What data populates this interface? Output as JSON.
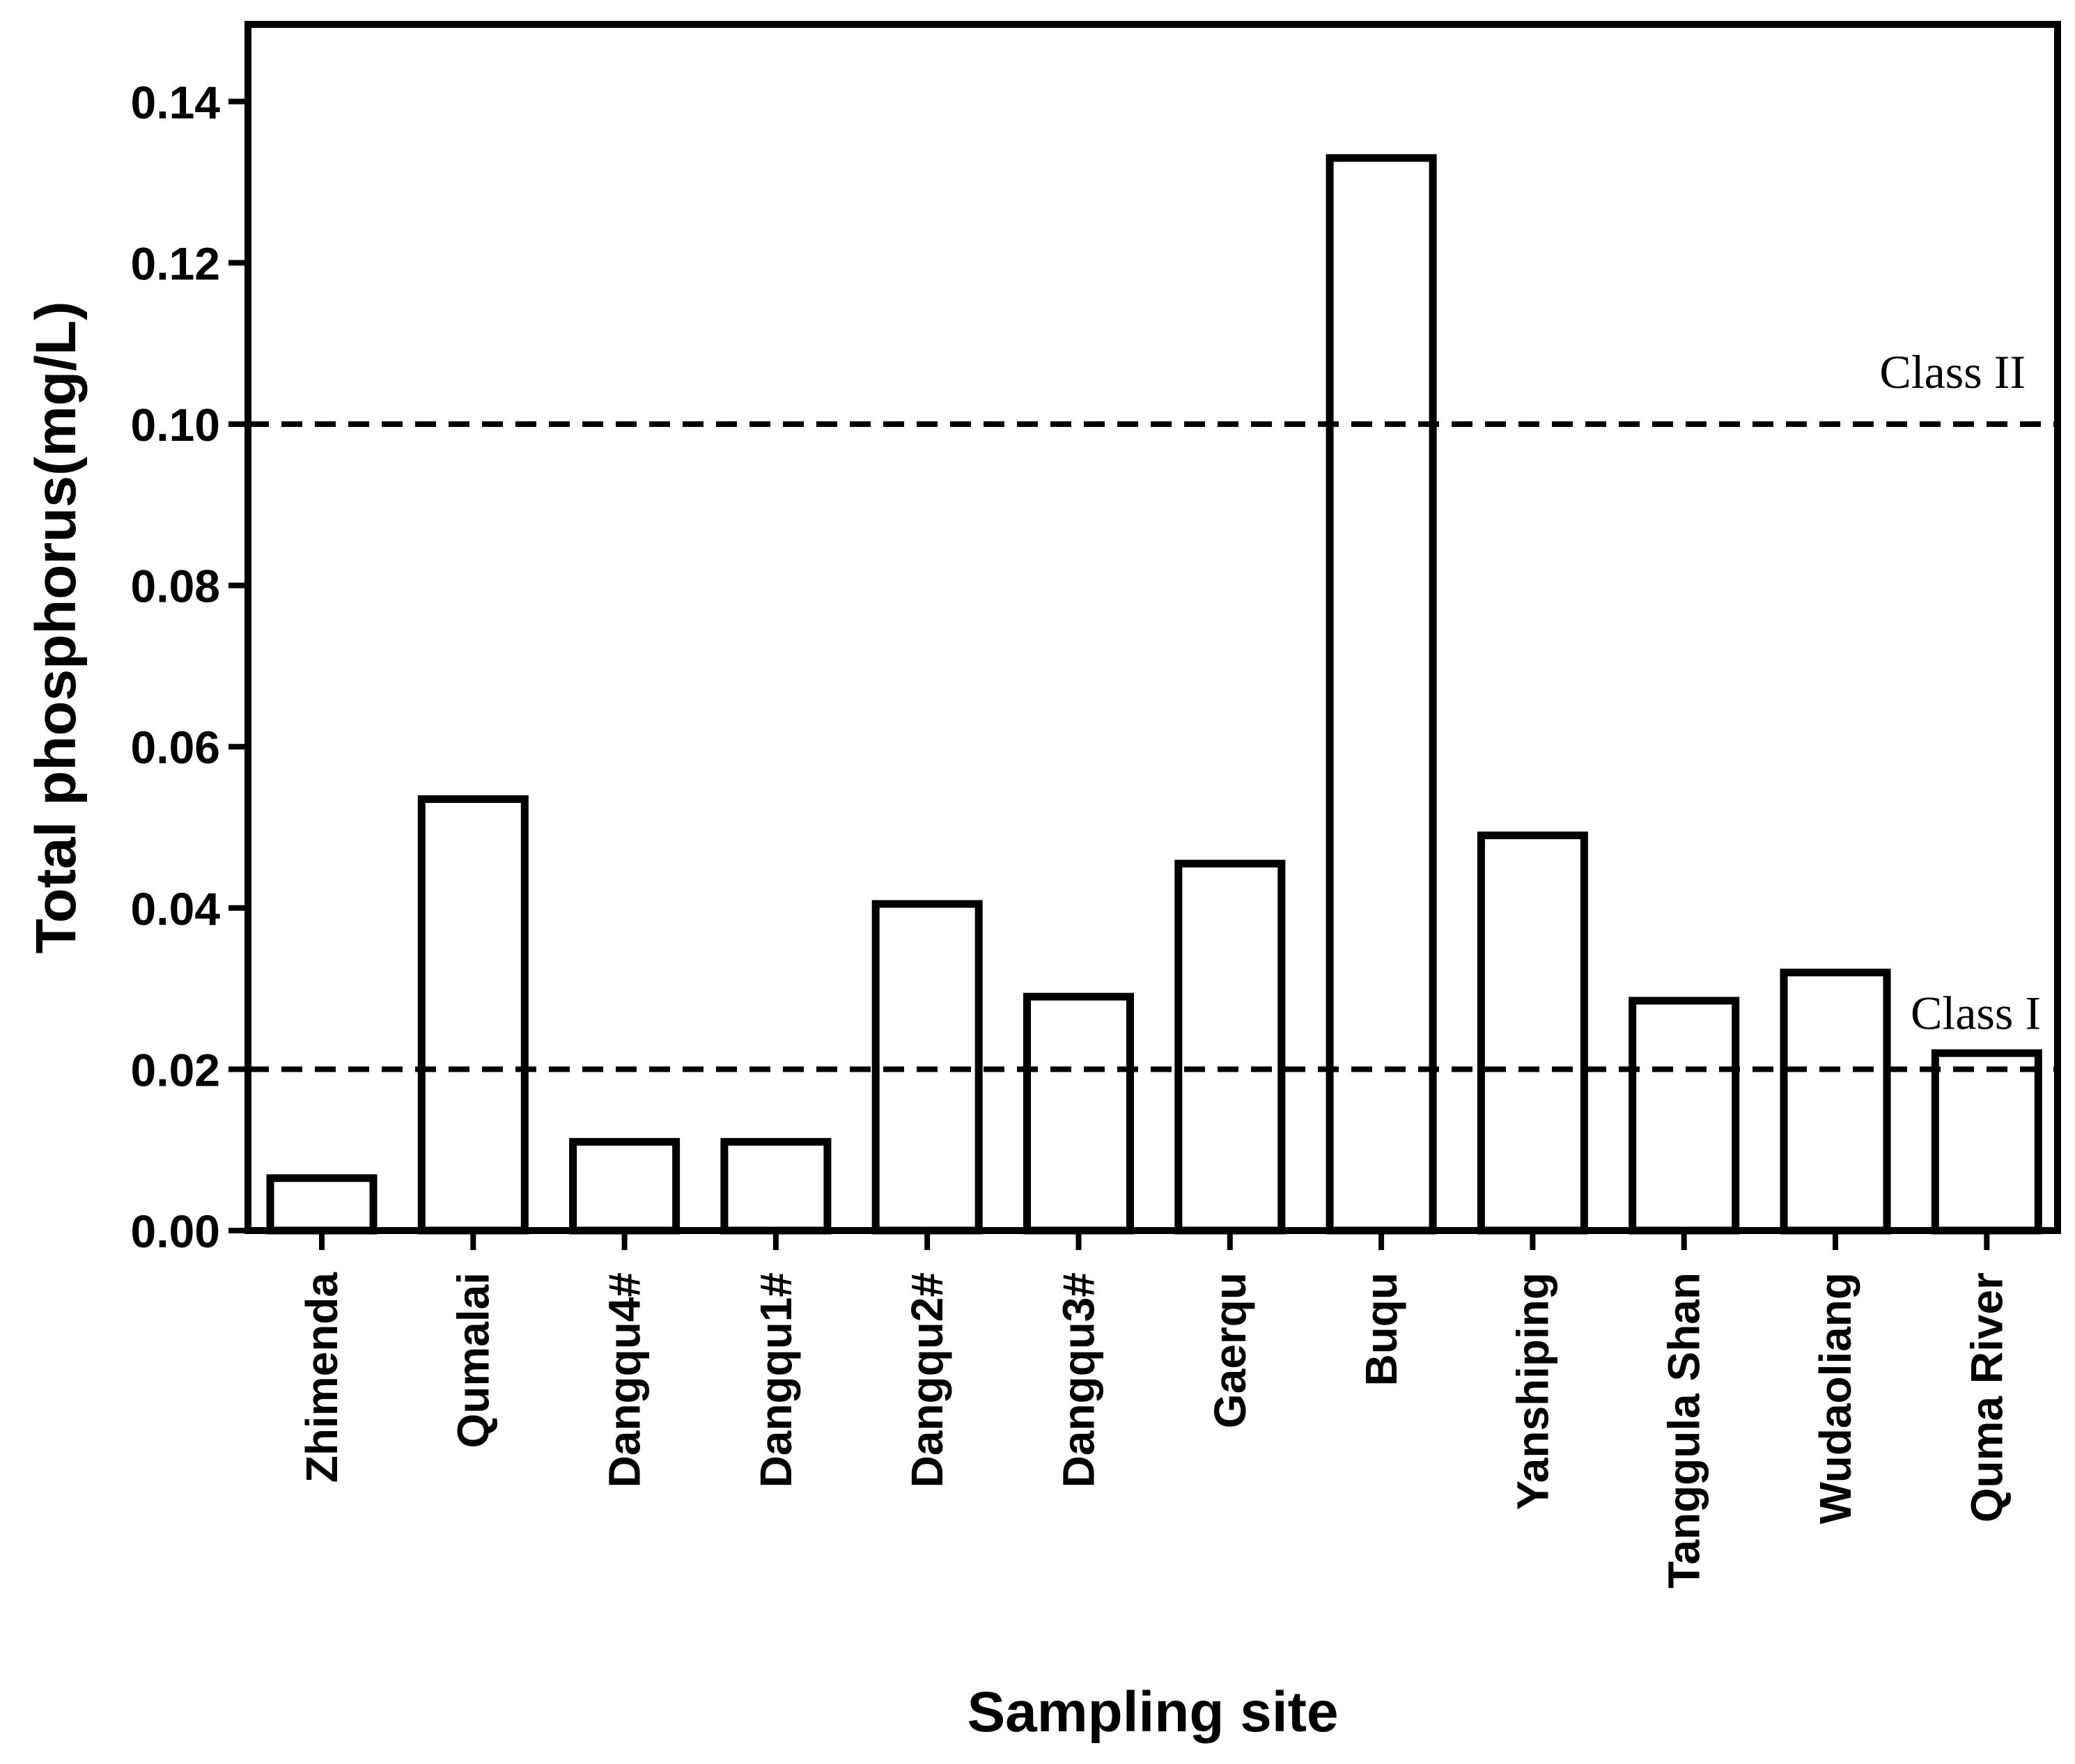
{
  "chart_data": {
    "type": "bar",
    "title": "",
    "xlabel": "Sampling site",
    "ylabel": "Total phosphorus(mg/L)",
    "ylim": [
      0,
      0.15
    ],
    "yticks": [
      0.0,
      0.02,
      0.04,
      0.06,
      0.08,
      0.1,
      0.12,
      0.14
    ],
    "ytick_labels": [
      "0.00",
      "0.02",
      "0.04",
      "0.06",
      "0.08",
      "0.10",
      "0.12",
      "0.14"
    ],
    "categories": [
      "Zhimenda",
      "Qumalai",
      "Dangqu4#",
      "Dangqu1#",
      "Dangqu2#",
      "Dangqu3#",
      "Gaerqu",
      "Buqu",
      "Yanshiping",
      "Tanggula Shan",
      "Wudaoliang",
      "Quma River"
    ],
    "values": [
      0.0065,
      0.0535,
      0.011,
      0.011,
      0.0405,
      0.029,
      0.0455,
      0.133,
      0.049,
      0.0285,
      0.032,
      0.022
    ],
    "reference_lines": [
      {
        "label": "Class I",
        "value": 0.02
      },
      {
        "label": "Class II",
        "value": 0.1
      }
    ],
    "grid": false,
    "legend": "none",
    "colors": {
      "bar_fill": "#ffffff",
      "bar_stroke": "#000000",
      "axis": "#000000"
    }
  }
}
